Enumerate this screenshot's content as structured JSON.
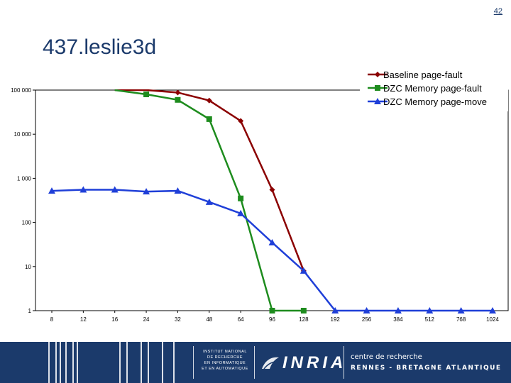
{
  "page_number": "42",
  "slide_title": "437.leslie3d",
  "colors": {
    "baseline": "#8b0000",
    "dzc_fault": "#1e8c1e",
    "dzc_move": "#1f3fd8",
    "footer_bg": "#1b3a6b"
  },
  "footer": {
    "institute_lines": [
      "INSTITUT NATIONAL",
      "DE RECHERCHE",
      "EN INFORMATIQUE",
      "ET EN AUTOMATIQUE"
    ],
    "logo_text": "INRIA",
    "centre_line1": "centre de recherche",
    "centre_line2": "RENNES - BRETAGNE ATLANTIQUE"
  },
  "chart_data": {
    "type": "line",
    "title": "",
    "xlabel": "",
    "ylabel": "",
    "y_scale": "log",
    "ylim": [
      1,
      100000
    ],
    "y_ticks": [
      1,
      10,
      100,
      1000,
      10000,
      100000
    ],
    "y_tick_labels": [
      "1",
      "10",
      "100",
      "1 000",
      "10 000",
      "100 000"
    ],
    "categories": [
      "8",
      "12",
      "16",
      "24",
      "32",
      "48",
      "64",
      "96",
      "128",
      "192",
      "256",
      "384",
      "512",
      "768",
      "1024"
    ],
    "legend_position": "top-right",
    "grid": false,
    "series": [
      {
        "name": "Baseline page-fault",
        "color": "#8b0000",
        "marker": "diamond",
        "values": [
          null,
          null,
          100000,
          100000,
          88000,
          58000,
          20000,
          550,
          8,
          null,
          null,
          null,
          null,
          null,
          null
        ]
      },
      {
        "name": "DZC Memory page-fault",
        "color": "#1e8c1e",
        "marker": "square",
        "values": [
          null,
          null,
          100000,
          80000,
          60000,
          22000,
          350,
          1,
          1,
          null,
          null,
          null,
          null,
          null,
          null
        ]
      },
      {
        "name": "DZC Memory page-move",
        "color": "#1f3fd8",
        "marker": "triangle",
        "values": [
          520,
          550,
          550,
          500,
          520,
          290,
          160,
          35,
          8,
          1,
          1,
          1,
          1,
          1,
          1
        ]
      }
    ]
  }
}
